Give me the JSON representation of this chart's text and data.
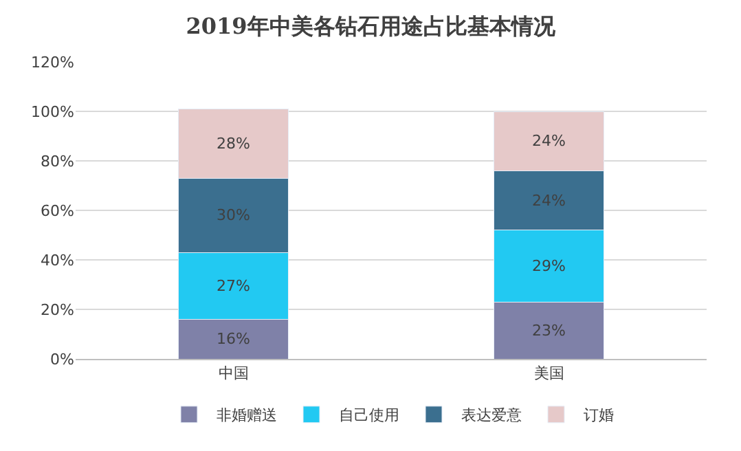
{
  "chart_data": {
    "type": "bar",
    "title": "2019年中美各钻石用途占比基本情况",
    "stacked": true,
    "categories": [
      "中国",
      "美国"
    ],
    "series": [
      {
        "name": "非婚赠送",
        "color": "#7f81a8",
        "values": [
          16,
          23
        ],
        "value_labels": [
          "16%",
          "23%"
        ]
      },
      {
        "name": "自己使用",
        "color": "#22c9f2",
        "values": [
          27,
          29
        ],
        "value_labels": [
          "27%",
          "29%"
        ]
      },
      {
        "name": "表达爱意",
        "color": "#3b6f8f",
        "values": [
          30,
          24
        ],
        "value_labels": [
          "30%",
          "24%"
        ]
      },
      {
        "name": "订婚",
        "color": "#e6c9c9",
        "values": [
          28,
          24
        ],
        "value_labels": [
          "28%",
          "24%"
        ]
      }
    ],
    "ylim": [
      0,
      120
    ],
    "yticks": [
      {
        "value": 0,
        "label": "0%"
      },
      {
        "value": 20,
        "label": "20%"
      },
      {
        "value": 40,
        "label": "40%"
      },
      {
        "value": 60,
        "label": "60%"
      },
      {
        "value": 80,
        "label": "80%"
      },
      {
        "value": 100,
        "label": "100%"
      },
      {
        "value": 120,
        "label": "120%"
      }
    ],
    "grid": "y",
    "legend": "bottom"
  }
}
